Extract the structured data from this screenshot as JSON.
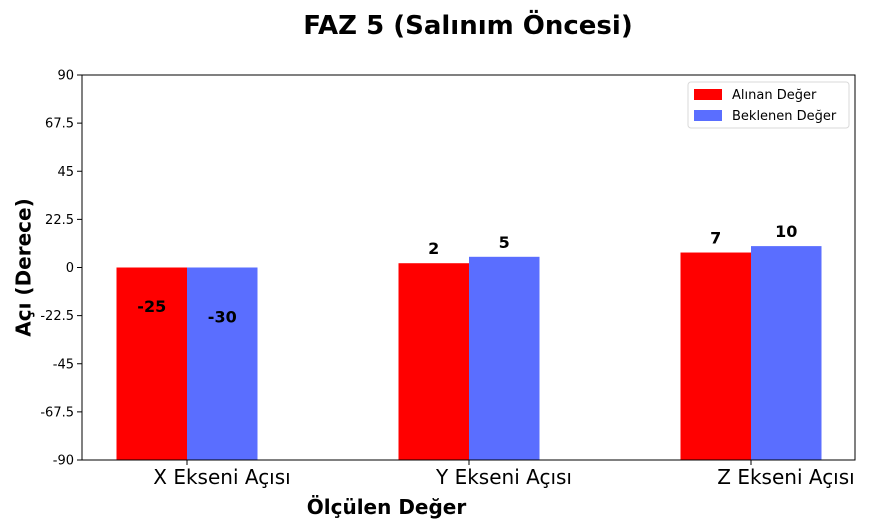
{
  "chart_data": {
    "type": "bar",
    "title": "FAZ 5 (Salınım Öncesi)",
    "xlabel": "Ölçülen Değer",
    "ylabel": "Açı (Derece)",
    "categories": [
      "X Ekseni Açısı",
      "Y Ekseni Açısı",
      "Z Ekseni Açısı"
    ],
    "series": [
      {
        "name": "Alınan Değer",
        "values": [
          -25,
          2,
          7
        ],
        "color": "#ff0000"
      },
      {
        "name": "Beklenen Değer",
        "values": [
          -30,
          5,
          10
        ],
        "color": "#5a6eff"
      }
    ],
    "ylim": [
      -90,
      90
    ],
    "yticks": [
      -90,
      -67.5,
      -45,
      -22.5,
      0,
      22.5,
      45,
      67.5,
      90
    ],
    "grid": false,
    "legend_position": "top-right",
    "data_labels": true
  }
}
